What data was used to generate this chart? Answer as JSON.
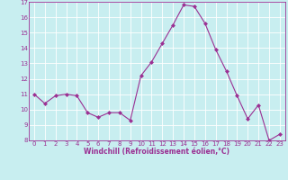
{
  "x": [
    0,
    1,
    2,
    3,
    4,
    5,
    6,
    7,
    8,
    9,
    10,
    11,
    12,
    13,
    14,
    15,
    16,
    17,
    18,
    19,
    20,
    21,
    22,
    23
  ],
  "y": [
    11.0,
    10.4,
    10.9,
    11.0,
    10.9,
    9.8,
    9.5,
    9.8,
    9.8,
    9.3,
    12.2,
    13.1,
    14.3,
    15.5,
    16.8,
    16.7,
    15.6,
    13.9,
    12.5,
    10.9,
    9.4,
    10.3,
    8.0,
    8.4
  ],
  "line_color": "#9b3093",
  "marker": "D",
  "marker_size": 2.0,
  "bg_color": "#c8eef0",
  "grid_color": "#ffffff",
  "xlabel": "Windchill (Refroidissement éolien,°C)",
  "xlabel_color": "#9b3093",
  "tick_color": "#9b3093",
  "ylim": [
    8,
    17
  ],
  "xlim_min": -0.5,
  "xlim_max": 23.5,
  "yticks": [
    8,
    9,
    10,
    11,
    12,
    13,
    14,
    15,
    16,
    17
  ],
  "xticks": [
    0,
    1,
    2,
    3,
    4,
    5,
    6,
    7,
    8,
    9,
    10,
    11,
    12,
    13,
    14,
    15,
    16,
    17,
    18,
    19,
    20,
    21,
    22,
    23
  ],
  "tick_fontsize": 5.0,
  "xlabel_fontsize": 5.5,
  "linewidth": 0.8
}
